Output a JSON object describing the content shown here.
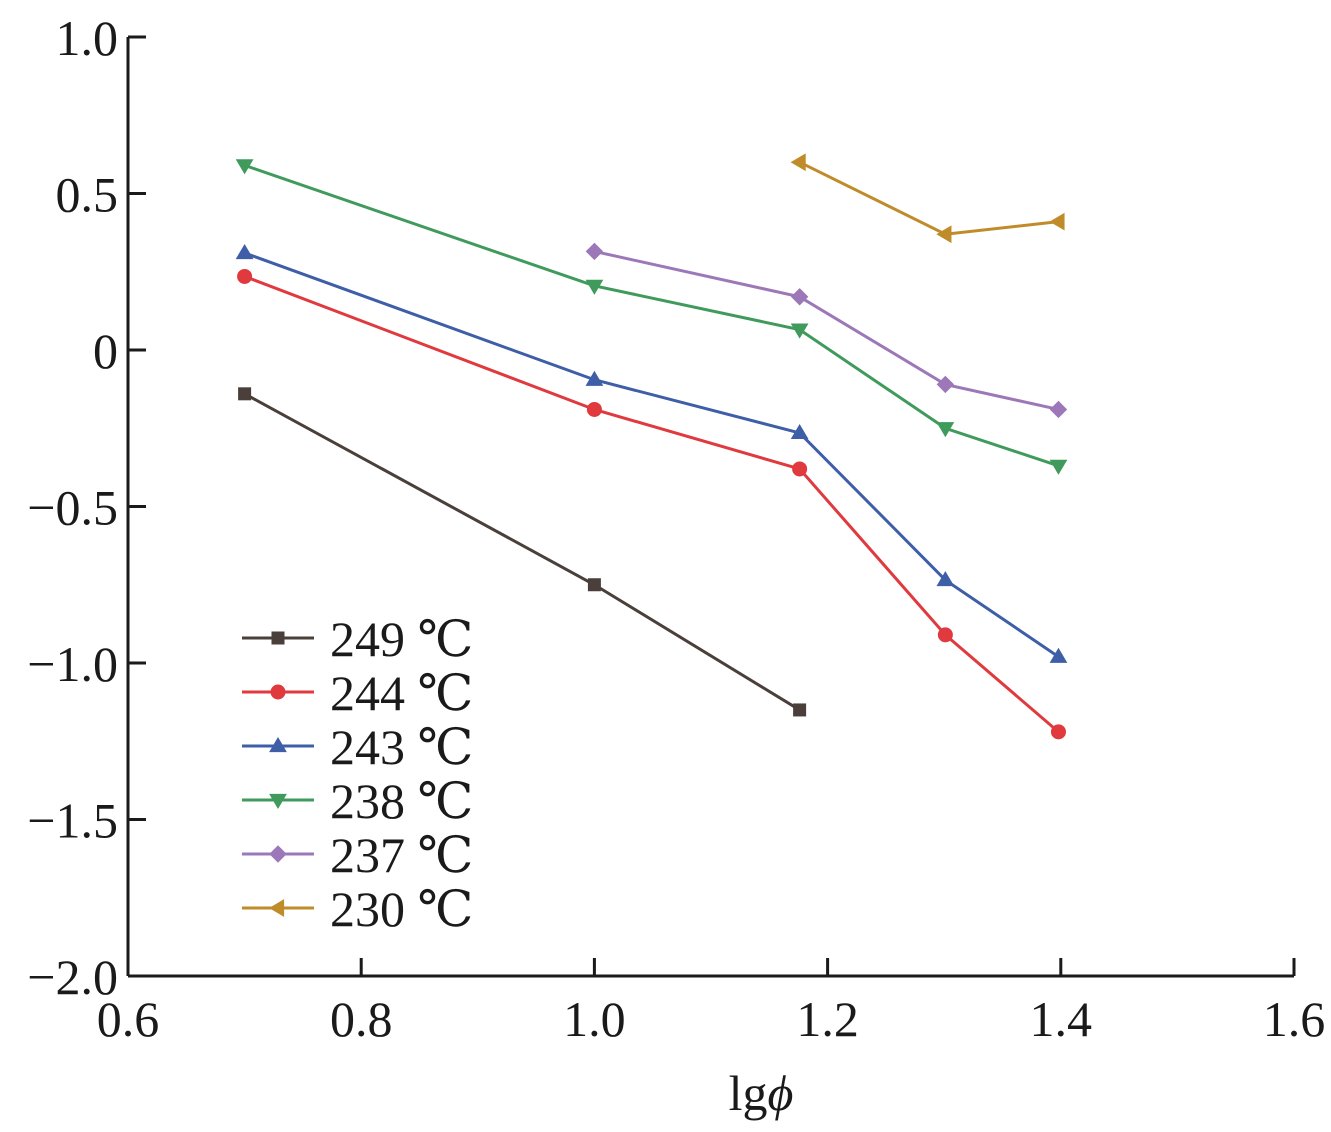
{
  "chart_data": {
    "type": "line",
    "title": "",
    "xlabel": "lgϕ",
    "xlabel_parts": {
      "roman": "lg",
      "italic": "ϕ"
    },
    "ylabel": "",
    "xlim": [
      0.6,
      1.6
    ],
    "ylim": [
      -2.0,
      1.0
    ],
    "x_ticks": [
      0.6,
      0.8,
      1.0,
      1.2,
      1.4,
      1.6
    ],
    "x_tick_labels": [
      "0.6",
      "0.8",
      "1.0",
      "1.2",
      "1.4",
      "1.6"
    ],
    "y_ticks": [
      1.0,
      0.5,
      0,
      -0.5,
      -1.0,
      -1.5,
      -2.0
    ],
    "y_tick_labels": [
      "1.0",
      "0.5",
      "0",
      "−0.5",
      "−1.0",
      "−1.5",
      "−2.0"
    ],
    "grid": false,
    "legend_position": "bottom-left",
    "series": [
      {
        "name": "249 ℃",
        "color": "#4a3f3a",
        "marker": "square",
        "x": [
          0.7,
          1.0,
          1.176
        ],
        "y": [
          -0.14,
          -0.75,
          -1.15
        ]
      },
      {
        "name": "244 ℃",
        "color": "#e0393e",
        "marker": "circle",
        "x": [
          0.7,
          1.0,
          1.176,
          1.301,
          1.398
        ],
        "y": [
          0.235,
          -0.19,
          -0.38,
          -0.91,
          -1.22
        ]
      },
      {
        "name": "243 ℃",
        "color": "#3f5ea8",
        "marker": "triangle-up",
        "x": [
          0.7,
          1.0,
          1.176,
          1.301,
          1.398
        ],
        "y": [
          0.31,
          -0.095,
          -0.265,
          -0.735,
          -0.98
        ]
      },
      {
        "name": "238 ℃",
        "color": "#3f9a5c",
        "marker": "triangle-down",
        "x": [
          0.7,
          1.0,
          1.176,
          1.301,
          1.398
        ],
        "y": [
          0.59,
          0.205,
          0.065,
          -0.25,
          -0.37
        ]
      },
      {
        "name": "237 ℃",
        "color": "#9c78b8",
        "marker": "diamond",
        "x": [
          1.0,
          1.176,
          1.301,
          1.398
        ],
        "y": [
          0.315,
          0.17,
          -0.11,
          -0.19
        ]
      },
      {
        "name": "230 ℃",
        "color": "#c08c2a",
        "marker": "triangle-left",
        "x": [
          1.176,
          1.301,
          1.398
        ],
        "y": [
          0.6,
          0.37,
          0.41
        ]
      }
    ]
  }
}
